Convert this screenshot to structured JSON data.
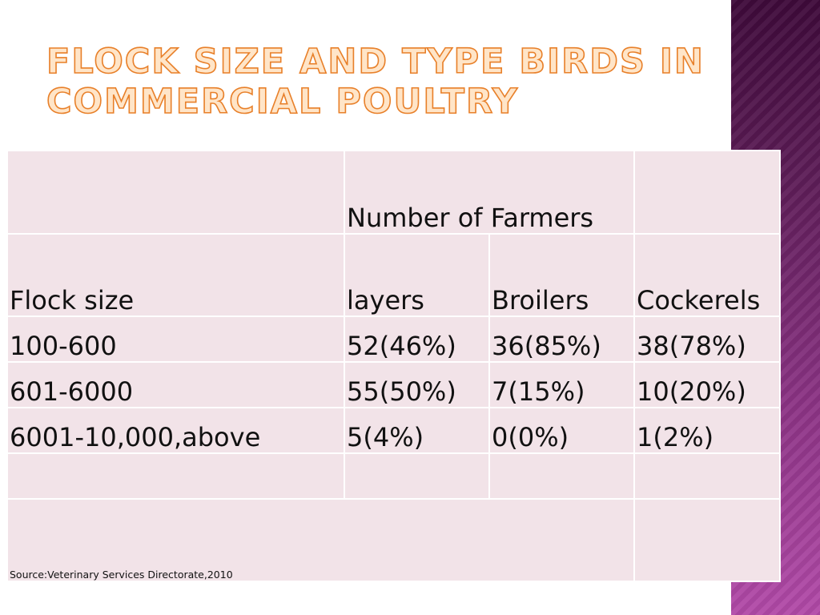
{
  "slide": {
    "title": "Flock size and type birds in commercial poultry",
    "colors": {
      "title_fill": "#ffe5c8",
      "title_outline": "#e8802a",
      "table_background": "#f2e3e8",
      "table_grid": "#ffffff",
      "side_bar_top": "#3e0a3a",
      "side_bar_bottom": "#b24aa8"
    }
  },
  "table": {
    "group_header": "Number of Farmers",
    "columns": [
      "Flock size",
      "layers",
      "Broilers",
      "Cockerels"
    ],
    "rows": [
      [
        "100-600",
        "52(46%)",
        "36(85%)",
        "38(78%)"
      ],
      [
        "601-6000",
        "55(50%)",
        "7(15%)",
        "10(20%)"
      ],
      [
        "6001-10,000,above",
        "5(4%)",
        "0(0%)",
        "1(2%)"
      ]
    ],
    "source": "Source:Veterinary Services Directorate,2010"
  }
}
